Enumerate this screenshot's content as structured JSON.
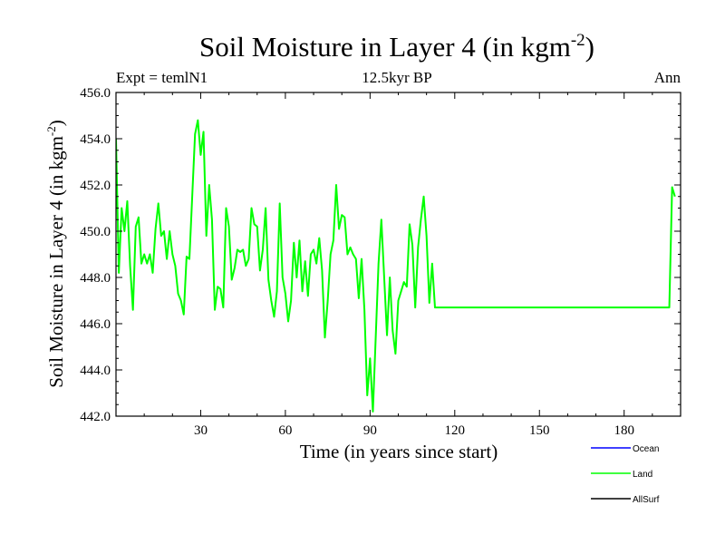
{
  "chart_data": {
    "type": "line",
    "title": "Soil Moisture in Layer 4 (in kgm",
    "title_sup": "-2",
    "title_close": ")",
    "subtitle": "12.5kyr BP",
    "left_label": "Expt = temlN1",
    "right_label": "Ann",
    "xlabel": "Time (in years since start)",
    "ylabel": "Soil Moisture in Layer 4 (in kgm",
    "ylabel_sup": "-2",
    "ylabel_close": ")",
    "xlim": [
      0,
      200
    ],
    "ylim": [
      442,
      456
    ],
    "x_ticks": [
      30,
      60,
      90,
      120,
      150,
      180
    ],
    "x_tick_labels": [
      "30",
      "60",
      "90",
      "120",
      "150",
      "180"
    ],
    "y_ticks": [
      442,
      444,
      446,
      448,
      450,
      452,
      454,
      456
    ],
    "y_tick_labels": [
      "442.0",
      "444.0",
      "446.0",
      "448.0",
      "450.0",
      "452.0",
      "454.0",
      "456.0"
    ],
    "legend_position": "bottom-right",
    "series": [
      {
        "name": "Ocean",
        "color": "#0000ff",
        "x": [],
        "y": []
      },
      {
        "name": "Land",
        "color": "#00ff00",
        "x": [
          0,
          1,
          2,
          3,
          4,
          5,
          6,
          7,
          8,
          9,
          10,
          11,
          12,
          13,
          14,
          15,
          16,
          17,
          18,
          19,
          20,
          21,
          22,
          23,
          24,
          25,
          26,
          27,
          28,
          29,
          30,
          31,
          32,
          33,
          34,
          35,
          36,
          37,
          38,
          39,
          40,
          41,
          42,
          43,
          44,
          45,
          46,
          47,
          48,
          49,
          50,
          51,
          52,
          53,
          54,
          55,
          56,
          57,
          58,
          59,
          60,
          61,
          62,
          63,
          64,
          65,
          66,
          67,
          68,
          69,
          70,
          71,
          72,
          73,
          74,
          75,
          76,
          77,
          78,
          79,
          80,
          81,
          82,
          83,
          84,
          85,
          86,
          87,
          88,
          89,
          90,
          91,
          92,
          93,
          94,
          95,
          96,
          97,
          98,
          99,
          100,
          101,
          102,
          103,
          104,
          105,
          106,
          107,
          108,
          109,
          110,
          111,
          112,
          113,
          114,
          115,
          116,
          196,
          197,
          198
        ],
        "y": [
          454.0,
          448.2,
          451.0,
          450.0,
          451.3,
          448.5,
          446.6,
          450.2,
          450.6,
          448.6,
          449.0,
          448.6,
          449.0,
          448.2,
          450.1,
          451.2,
          449.8,
          450.0,
          448.8,
          450.0,
          449.0,
          448.5,
          447.3,
          447.0,
          446.4,
          448.9,
          448.8,
          451.5,
          454.2,
          454.8,
          453.3,
          454.3,
          449.8,
          452.0,
          450.5,
          446.6,
          447.6,
          447.5,
          446.7,
          451.0,
          450.2,
          447.9,
          448.4,
          449.2,
          449.1,
          449.2,
          448.5,
          448.8,
          451.0,
          450.3,
          450.2,
          448.3,
          449.2,
          451.0,
          447.9,
          447.0,
          446.3,
          447.4,
          451.2,
          448.0,
          447.3,
          446.1,
          447.0,
          449.5,
          448.0,
          449.6,
          447.4,
          448.7,
          447.2,
          449.0,
          449.2,
          448.6,
          449.7,
          448.3,
          445.4,
          447.0,
          449.0,
          449.6,
          452.0,
          450.1,
          450.7,
          450.6,
          449.0,
          449.3,
          449.0,
          448.8,
          447.1,
          448.8,
          446.6,
          442.9,
          444.5,
          442.2,
          445.4,
          448.6,
          450.5,
          448.0,
          445.5,
          448.0,
          445.7,
          444.7,
          447.0,
          447.4,
          447.8,
          447.6,
          450.3,
          449.4,
          446.7,
          449.3,
          450.5,
          451.5,
          449.8,
          446.9,
          448.6,
          446.7,
          446.7,
          446.7,
          446.7,
          446.7,
          451.9,
          451.5
        ]
      },
      {
        "name": "AllSurf",
        "color": "#000000",
        "x": [],
        "y": []
      }
    ]
  }
}
